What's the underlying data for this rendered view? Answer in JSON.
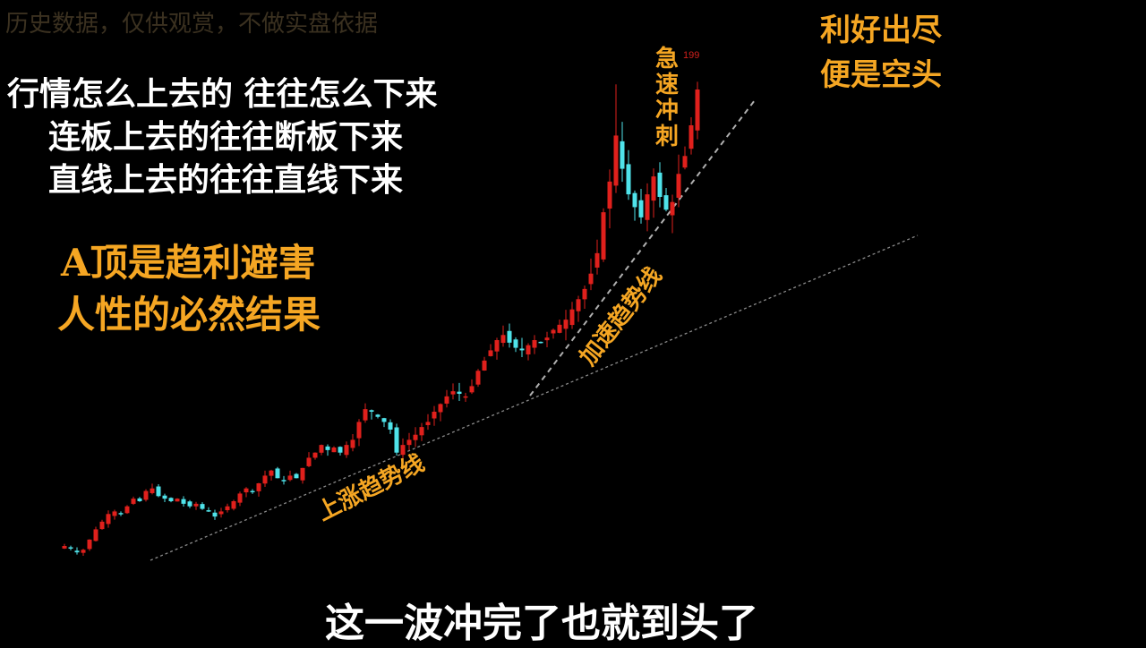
{
  "watermark": "历史数据，仅供观赏，不做实盘依据",
  "left_lines": [
    "行情怎么上去的  往往怎么下来",
    "连板上去的往往断板下来",
    "直线上去的往往直线下来"
  ],
  "left_orange": [
    "A顶是趋利避害",
    "人性的必然结果"
  ],
  "top_right": [
    "利好出尽",
    "便是空头"
  ],
  "vertical_label": "急速冲刺",
  "uptrend_label": "上涨趋势线",
  "accel_label": "加速趋势线",
  "subtitle": "这一波冲完了也就到头了",
  "colors": {
    "up": "#e0201c",
    "down": "#4fe3ea",
    "annotation": "#f5a623",
    "max_label": "#d0201c",
    "trendline": "#9a9a9a"
  },
  "chart_data": {
    "type": "candlestick",
    "max_label": "199",
    "ylim": [
      0,
      230
    ],
    "grid": false,
    "closes": [
      17.5,
      16.5,
      15,
      16,
      20,
      24,
      27,
      30,
      31,
      30,
      33,
      36,
      35,
      39,
      40,
      37,
      36,
      35,
      36,
      34,
      33,
      34,
      32,
      31,
      29,
      31,
      33,
      35,
      38,
      40,
      39,
      42,
      45,
      47,
      44,
      43,
      45,
      44,
      48,
      52,
      54,
      57,
      55,
      56,
      54,
      57,
      59,
      66,
      71,
      70,
      68,
      66,
      63,
      54,
      57,
      59,
      61,
      64,
      66,
      70,
      73,
      76,
      78,
      77,
      76,
      80,
      86,
      90,
      94,
      98,
      100,
      97,
      95,
      94,
      96,
      98,
      97,
      99,
      102,
      104,
      106,
      110,
      114,
      118,
      124,
      132,
      148,
      160,
      178,
      165,
      155,
      150,
      146,
      155,
      162,
      154,
      149,
      152,
      163,
      170,
      182,
      196
    ],
    "max_high": 199
  }
}
